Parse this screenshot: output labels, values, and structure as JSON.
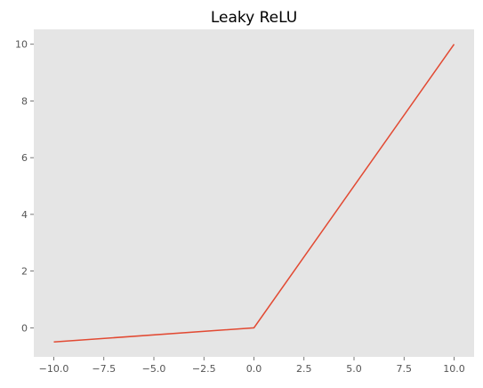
{
  "chart_data": {
    "type": "line",
    "title": "Leaky ReLU",
    "xlabel": "",
    "ylabel": "",
    "xlim": [
      -11,
      11
    ],
    "ylim": [
      -1.025,
      10.525
    ],
    "grid": false,
    "x_ticks": [
      -10.0,
      -7.5,
      -5.0,
      -2.5,
      0.0,
      2.5,
      5.0,
      7.5,
      10.0
    ],
    "x_tick_labels": [
      "−10.0",
      "−7.5",
      "−5.0",
      "−2.5",
      "0.0",
      "2.5",
      "5.0",
      "7.5",
      "10.0"
    ],
    "y_ticks": [
      0,
      2,
      4,
      6,
      8,
      10
    ],
    "y_tick_labels": [
      "0",
      "2",
      "4",
      "6",
      "8",
      "10"
    ],
    "series": [
      {
        "x": [
          -10,
          0,
          10
        ],
        "y": [
          -0.5,
          0,
          10
        ]
      }
    ],
    "colors": {
      "plot_background": "#e5e5e5",
      "line": "#e24a33",
      "tick": "#555555"
    }
  }
}
